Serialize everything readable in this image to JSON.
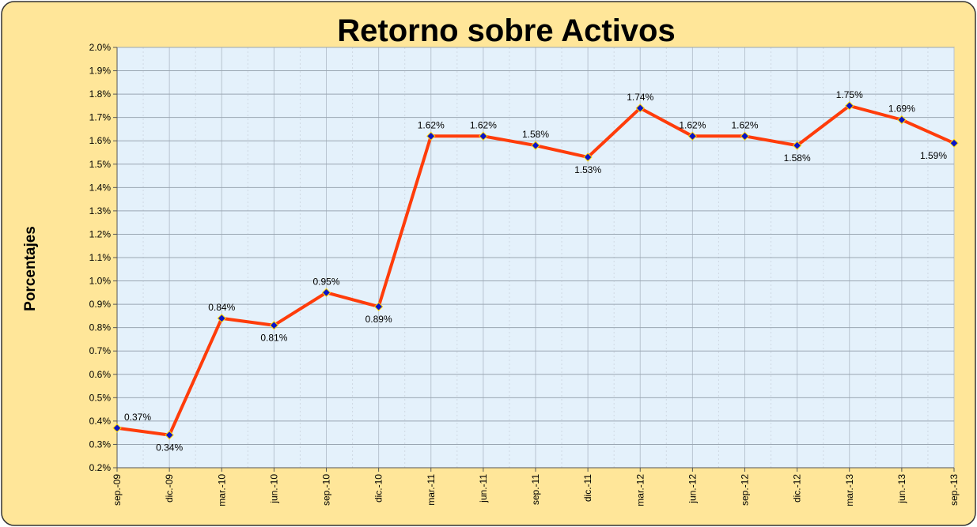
{
  "chart_data": {
    "type": "line",
    "title": "Retorno sobre Activos",
    "y_label": "Porcentajes",
    "categories": [
      "sep.-09",
      "dic.-09",
      "mar.-10",
      "jun.-10",
      "sep.-10",
      "dic.-10",
      "mar.-11",
      "jun.-11",
      "sep.-11",
      "dic.-11",
      "mar.-12",
      "jun.-12",
      "sep.-12",
      "dic.-12",
      "mar.-13",
      "jun.-13",
      "sep.-13"
    ],
    "series": [
      {
        "name": "Retorno sobre Activos",
        "color": "#ff3c0a",
        "marker_color": "#0a14c8",
        "values": [
          0.37,
          0.34,
          0.84,
          0.81,
          0.95,
          0.89,
          1.62,
          1.62,
          1.58,
          1.53,
          1.74,
          1.62,
          1.62,
          1.58,
          1.75,
          1.69,
          1.59
        ],
        "value_labels": [
          "0.37%",
          "0.34%",
          "0.84%",
          "0.81%",
          "0.95%",
          "0.89%",
          "1.62%",
          "1.62%",
          "1.58%",
          "1.53%",
          "1.74%",
          "1.62%",
          "1.62%",
          "1.58%",
          "1.75%",
          "1.69%",
          "1.59%"
        ]
      }
    ],
    "ylim": [
      0.2,
      2.0
    ],
    "yticks": [
      {
        "value": 0.2,
        "label": "0.2%"
      },
      {
        "value": 0.3,
        "label": "0.3%"
      },
      {
        "value": 0.4,
        "label": "0.4%"
      },
      {
        "value": 0.5,
        "label": "0.5%"
      },
      {
        "value": 0.6,
        "label": "0.6%"
      },
      {
        "value": 0.7,
        "label": "0.7%"
      },
      {
        "value": 0.8,
        "label": "0.8%"
      },
      {
        "value": 0.9,
        "label": "0.9%"
      },
      {
        "value": 1.0,
        "label": "1.0%"
      },
      {
        "value": 1.1,
        "label": "1.1%"
      },
      {
        "value": 1.2,
        "label": "1.2%"
      },
      {
        "value": 1.3,
        "label": "1.3%"
      },
      {
        "value": 1.4,
        "label": "1.4%"
      },
      {
        "value": 1.5,
        "label": "1.5%"
      },
      {
        "value": 1.6,
        "label": "1.6%"
      },
      {
        "value": 1.7,
        "label": "1.7%"
      },
      {
        "value": 1.8,
        "label": "1.8%"
      },
      {
        "value": 1.9,
        "label": "1.9%"
      },
      {
        "value": 2.0,
        "label": "2.0%"
      }
    ],
    "grid": true
  }
}
